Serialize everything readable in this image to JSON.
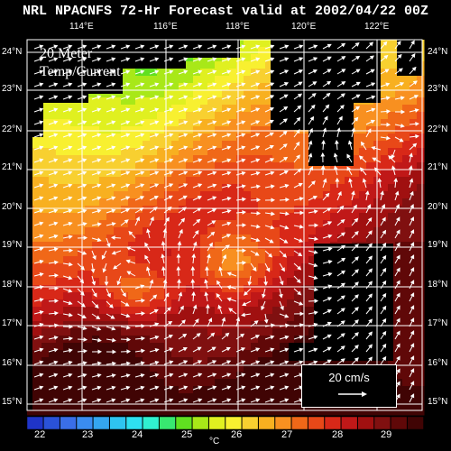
{
  "title": "NRL NPACNFS 72-Hr Forecast valid at 2002/04/22 00Z",
  "map_label_lines": [
    "20 Meter",
    "Temp/Current"
  ],
  "lon_labels": [
    "114°E",
    "116°E",
    "118°E",
    "120°E",
    "122°E"
  ],
  "lat_labels": [
    "24°N",
    "23°N",
    "22°N",
    "21°N",
    "20°N",
    "19°N",
    "18°N",
    "17°N",
    "16°N",
    "15°N"
  ],
  "vector_legend": "20 cm/s",
  "colorbar": {
    "tick_labels": [
      "22",
      "23",
      "24",
      "25",
      "26",
      "27",
      "28",
      "29"
    ],
    "unit": "°C",
    "colors": [
      "#1f34c8",
      "#2a52d8",
      "#3a6ee8",
      "#3a8cf0",
      "#34a6f0",
      "#2ec4f0",
      "#2ee0f0",
      "#30f0d0",
      "#38e870",
      "#60e020",
      "#a8e818",
      "#e0f020",
      "#f8f030",
      "#f8d030",
      "#f8b020",
      "#f89020",
      "#f06818",
      "#e84818",
      "#d82818",
      "#c01818",
      "#a01010",
      "#801010",
      "#600808",
      "#400404"
    ]
  },
  "data_extent": {
    "lon_min": 113,
    "lon_max": 123,
    "lat_min": 14.8,
    "lat_max": 24.3
  },
  "land_color": "#000000",
  "grid_color": "#ffffff",
  "vector_color": "#ffffff"
}
